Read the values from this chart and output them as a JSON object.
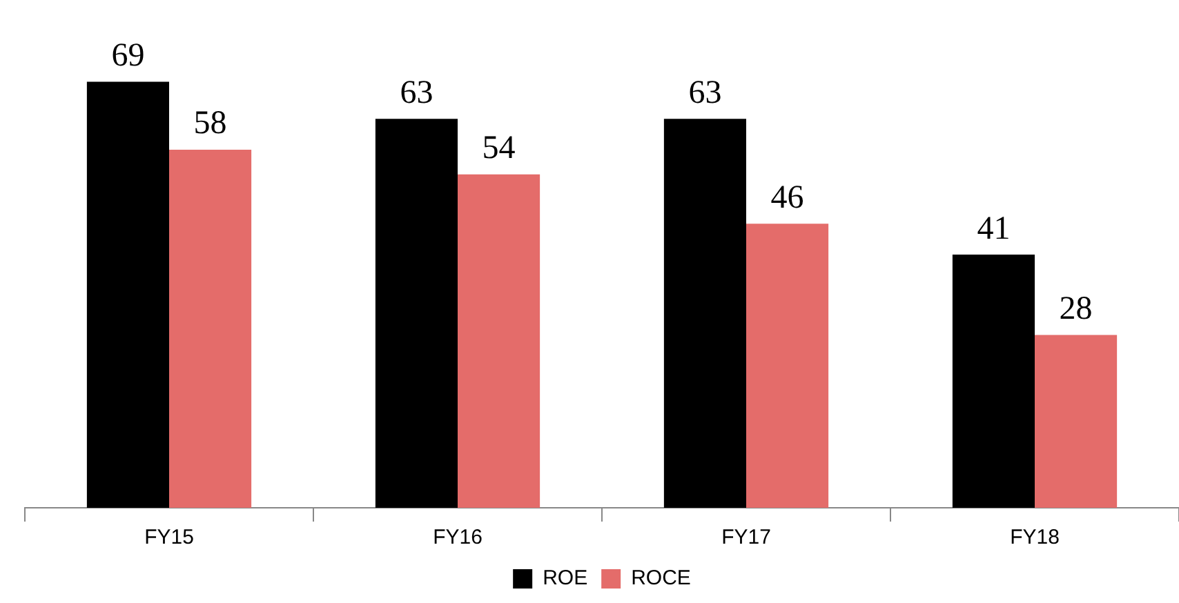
{
  "chart_data": {
    "type": "bar",
    "categories": [
      "FY15",
      "FY16",
      "FY17",
      "FY18"
    ],
    "series": [
      {
        "name": "ROE",
        "color": "#000000",
        "values": [
          69,
          63,
          63,
          41
        ]
      },
      {
        "name": "ROCE",
        "color": "#e46c6a",
        "values": [
          58,
          54,
          46,
          28
        ]
      }
    ],
    "data_labels": true,
    "legend": "bottom",
    "grid": false,
    "tick_labels": "x"
  }
}
